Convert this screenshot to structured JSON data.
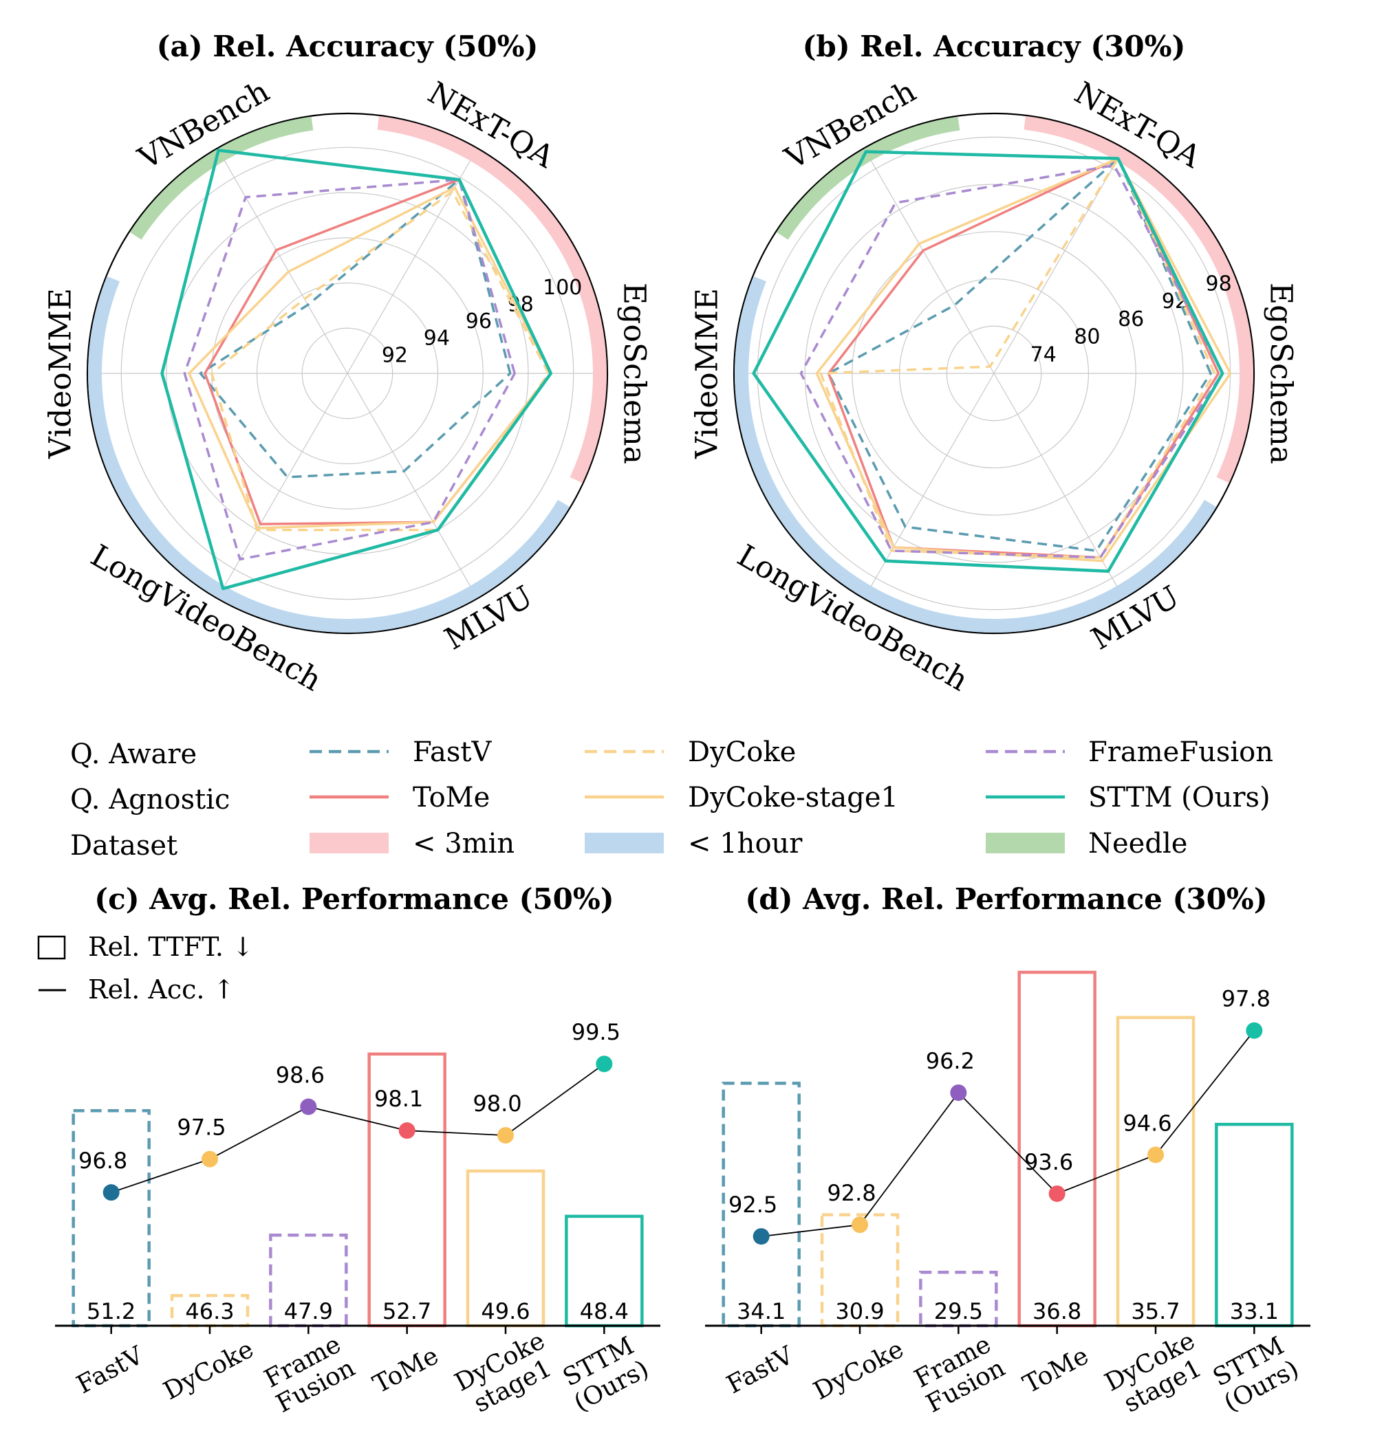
{
  "colors": {
    "FastV": "#5b9bb0",
    "ToMe": "#f08080",
    "DyCoke": "#f9d38e",
    "DyCoke-stage1": "#f9d38e",
    "FrameFusion": "#a98ad0",
    "STTM": "#1fbaa4",
    "short": "#fbc8cb",
    "long": "#bdd8ee",
    "needle": "#b3d8ac",
    "dot_FastV": "#1f6e95",
    "dot_DyCoke": "#f8c15c",
    "dot_FrameFusion": "#8e5fbf",
    "dot_ToMe": "#ef5a66",
    "dot_STTM": "#17bfa6"
  },
  "chart_data": [
    {
      "panel": "a",
      "type": "radar",
      "title": "(a) Rel. Accuracy (50%)",
      "axes": [
        "EgoSchema",
        "NExT-QA",
        "VNBench",
        "VideoMME",
        "LongVideoBench",
        "MLVU"
      ],
      "rmin": 90,
      "rmax": 101.5,
      "ticks": [
        92,
        94,
        96,
        98,
        100
      ],
      "grid_levels": [
        92,
        94,
        96,
        98,
        100
      ],
      "series": [
        {
          "name": "FastV",
          "style": "dashed",
          "values": [
            97.2,
            99.9,
            93.5,
            96.5,
            95.3,
            95.0
          ]
        },
        {
          "name": "ToMe",
          "style": "solid",
          "values": [
            99.0,
            99.9,
            96.3,
            96.3,
            97.7,
            97.6
          ]
        },
        {
          "name": "DyCoke",
          "style": "dashed",
          "values": [
            98.9,
            99.3,
            93.8,
            96.0,
            98.0,
            98.0
          ]
        },
        {
          "name": "DyCoke-stage1",
          "style": "solid",
          "values": [
            99.0,
            99.5,
            95.2,
            97.0,
            97.9,
            97.6
          ]
        },
        {
          "name": "FrameFusion",
          "style": "dashed",
          "values": [
            97.4,
            99.9,
            99.0,
            97.2,
            99.5,
            97.6
          ]
        },
        {
          "name": "STTM (Ours)",
          "style": "solid",
          "values": [
            99.0,
            99.9,
            101.4,
            98.2,
            101.0,
            98.0
          ]
        }
      ],
      "ring_bands": [
        {
          "group": "short",
          "axes": [
            "EgoSchema",
            "NExT-QA"
          ]
        },
        {
          "group": "needle",
          "axes": [
            "VNBench"
          ]
        },
        {
          "group": "long",
          "axes": [
            "VideoMME",
            "LongVideoBench",
            "MLVU"
          ]
        }
      ]
    },
    {
      "panel": "b",
      "type": "radar",
      "title": "(b) Rel. Accuracy (30%)",
      "axes": [
        "EgoSchema",
        "NExT-QA",
        "VNBench",
        "VideoMME",
        "LongVideoBench",
        "MLVU"
      ],
      "rmin": 68,
      "rmax": 101,
      "ticks": [
        74,
        80,
        86,
        92,
        98
      ],
      "grid_levels": [
        74,
        80,
        86,
        92,
        98
      ],
      "series": [
        {
          "name": "FastV",
          "style": "dashed",
          "values": [
            95.5,
            99.5,
            78.0,
            89.0,
            90.5,
            94.0
          ]
        },
        {
          "name": "ToMe",
          "style": "solid",
          "values": [
            96.5,
            99.5,
            86.0,
            89.0,
            93.5,
            95.0
          ]
        },
        {
          "name": "DyCoke",
          "style": "dashed",
          "values": [
            96.0,
            99.5,
            69.0,
            90.0,
            94.0,
            95.0
          ]
        },
        {
          "name": "DyCoke-stage1",
          "style": "solid",
          "values": [
            98.0,
            99.5,
            87.0,
            90.5,
            93.5,
            95.5
          ]
        },
        {
          "name": "FrameFusion",
          "style": "dashed",
          "values": [
            97.0,
            98.5,
            93.0,
            92.5,
            94.0,
            95.0
          ]
        },
        {
          "name": "STTM (Ours)",
          "style": "solid",
          "values": [
            97.0,
            99.5,
            100.5,
            98.5,
            95.5,
            97.0
          ]
        }
      ],
      "ring_bands": [
        {
          "group": "short",
          "axes": [
            "EgoSchema",
            "NExT-QA"
          ]
        },
        {
          "group": "needle",
          "axes": [
            "VNBench"
          ]
        },
        {
          "group": "long",
          "axes": [
            "VideoMME",
            "LongVideoBench",
            "MLVU"
          ]
        }
      ]
    },
    {
      "panel": "c",
      "type": "bar",
      "title": "(c) Avg. Rel. Performance (50%)",
      "categories": [
        "FastV",
        "DyCoke",
        "Frame\nFusion",
        "ToMe",
        "DyCoke\nstage1",
        "STTM\n(Ours)"
      ],
      "methods": [
        "FastV",
        "DyCoke",
        "FrameFusion",
        "ToMe",
        "DyCoke-stage1",
        "STTM"
      ],
      "bar_styles": [
        "dashed",
        "dashed",
        "dashed",
        "solid",
        "solid",
        "solid"
      ],
      "ttft": [
        51.2,
        46.3,
        47.9,
        52.7,
        49.6,
        48.4
      ],
      "ttft_range": [
        45.5,
        53.7
      ],
      "acc": [
        96.8,
        97.5,
        98.6,
        98.1,
        98.0,
        99.5
      ],
      "acc_range": [
        94.0,
        100.5
      ],
      "legend": {
        "bar": "Rel. TTFT. ↓",
        "line": "Rel. Acc. ↑"
      }
    },
    {
      "panel": "d",
      "type": "bar",
      "title": "(d) Avg. Rel. Performance (30%)",
      "categories": [
        "FastV",
        "DyCoke",
        "Frame\nFusion",
        "ToMe",
        "DyCoke\nstage1",
        "STTM\n(Ours)"
      ],
      "methods": [
        "FastV",
        "DyCoke",
        "FrameFusion",
        "ToMe",
        "DyCoke-stage1",
        "STTM"
      ],
      "bar_styles": [
        "dashed",
        "dashed",
        "dashed",
        "solid",
        "solid",
        "solid"
      ],
      "ttft": [
        34.1,
        30.9,
        29.5,
        36.8,
        35.7,
        33.1
      ],
      "ttft_range": [
        28.2,
        36.8
      ],
      "acc": [
        92.5,
        92.8,
        96.2,
        93.6,
        94.6,
        97.8
      ],
      "acc_range": [
        90.2,
        99.3
      ]
    }
  ],
  "legend": {
    "rows": [
      {
        "label": "Q. Aware",
        "items": [
          {
            "key": "FastV",
            "label": "FastV",
            "kind": "dashed"
          },
          {
            "key": "DyCoke",
            "label": "DyCoke",
            "kind": "dashed"
          },
          {
            "key": "FrameFusion",
            "label": "FrameFusion",
            "kind": "dashed"
          }
        ]
      },
      {
        "label": "Q. Agnostic",
        "items": [
          {
            "key": "ToMe",
            "label": "ToMe",
            "kind": "solid"
          },
          {
            "key": "DyCoke-stage1",
            "label": "DyCoke-stage1",
            "kind": "solid"
          },
          {
            "key": "STTM",
            "label": "STTM (Ours)",
            "kind": "solid"
          }
        ]
      },
      {
        "label": "Dataset",
        "items": [
          {
            "key": "short",
            "label": "< 3min",
            "kind": "patch"
          },
          {
            "key": "long",
            "label": "< 1hour",
            "kind": "patch"
          },
          {
            "key": "needle",
            "label": "Needle",
            "kind": "patch"
          }
        ]
      }
    ]
  }
}
